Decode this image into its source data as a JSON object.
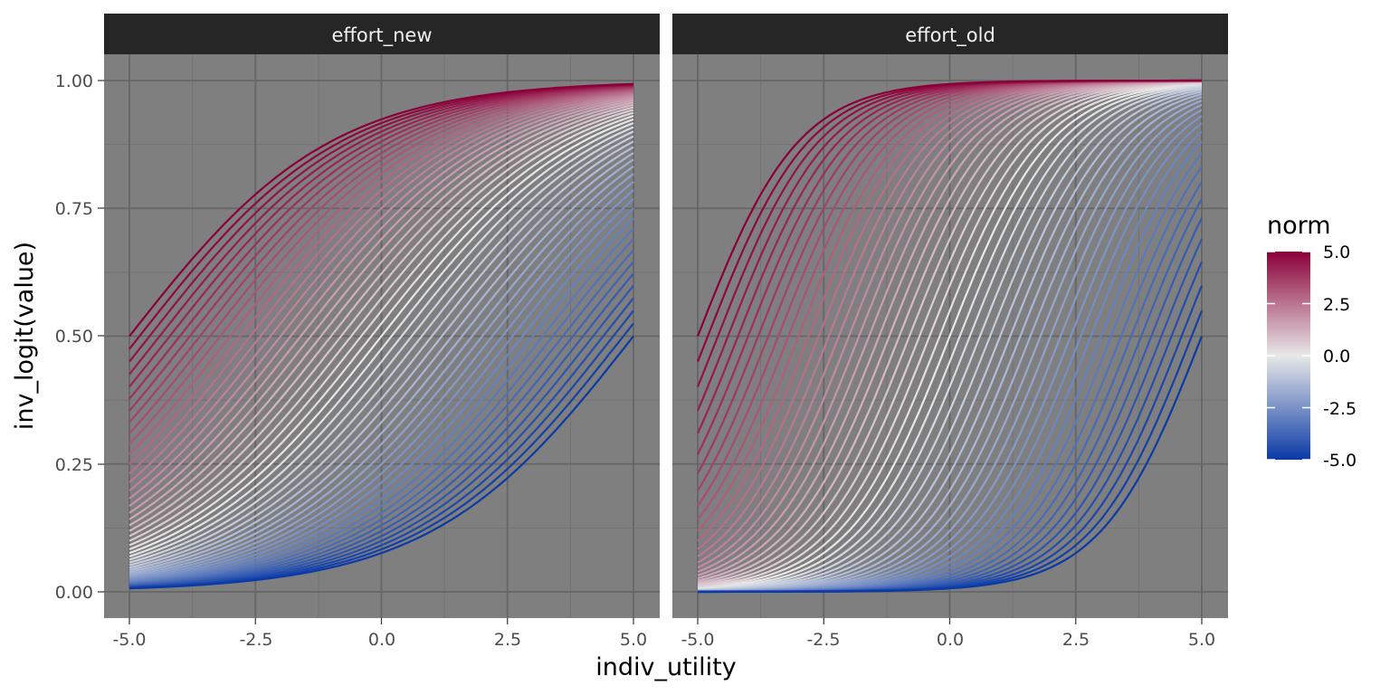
{
  "chart_data": {
    "type": "line",
    "xlabel": "indiv_utility",
    "ylabel": "inv_logit(value)",
    "xlim": [
      -5.0,
      5.0
    ],
    "ylim": [
      0.0,
      1.0
    ],
    "x_ticks": [
      "-5.0",
      "-2.5",
      "0.0",
      "2.5",
      "5.0"
    ],
    "y_ticks": [
      "0.00",
      "0.25",
      "0.50",
      "0.75",
      "1.00"
    ],
    "grid": true,
    "panels": [
      {
        "label": "effort_new",
        "slope": 0.5
      },
      {
        "label": "effort_old",
        "slope": 1.0
      }
    ],
    "curve": "inv_logit(slope * (indiv_utility + norm))",
    "norm_values": {
      "from": -5.0,
      "to": 5.0,
      "step": 0.2
    },
    "legend": {
      "title": "norm",
      "position": "right",
      "labels": [
        "5.0",
        "2.5",
        "0.0",
        "-2.5",
        "-5.0"
      ],
      "scale": {
        "low": -5.0,
        "mid": 0.0,
        "high": 5.0
      }
    },
    "colors": {
      "low": "#0a3aa6",
      "mid": "#e8e8e8",
      "high": "#8b0038",
      "panel_background": "#7f7f7f",
      "strip_background": "#262626"
    }
  }
}
